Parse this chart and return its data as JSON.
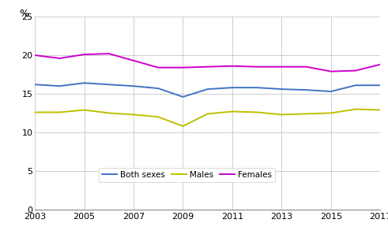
{
  "years": [
    2003,
    2004,
    2005,
    2006,
    2007,
    2008,
    2009,
    2010,
    2011,
    2012,
    2013,
    2014,
    2015,
    2016,
    2017
  ],
  "both_sexes": [
    16.2,
    16.0,
    16.4,
    16.2,
    16.0,
    15.7,
    14.6,
    15.6,
    15.8,
    15.8,
    15.6,
    15.5,
    15.3,
    16.1,
    16.1
  ],
  "males": [
    12.6,
    12.6,
    12.9,
    12.5,
    12.3,
    12.0,
    10.8,
    12.4,
    12.7,
    12.6,
    12.3,
    12.4,
    12.5,
    13.0,
    12.9
  ],
  "females": [
    20.0,
    19.6,
    20.1,
    20.2,
    19.3,
    18.4,
    18.4,
    18.5,
    18.6,
    18.5,
    18.5,
    18.5,
    17.9,
    18.0,
    18.8
  ],
  "both_color": "#4472C4",
  "males_color": "#BFBF00",
  "females_color": "#CC00CC",
  "ylim": [
    0,
    25
  ],
  "yticks": [
    0,
    5,
    10,
    15,
    20,
    25
  ],
  "xticks": [
    2003,
    2005,
    2007,
    2009,
    2011,
    2013,
    2015,
    2017
  ],
  "ylabel": "%",
  "legend_labels": [
    "Both sexes",
    "Males",
    "Females"
  ],
  "linewidth": 1.4,
  "bg_color": "#ffffff"
}
